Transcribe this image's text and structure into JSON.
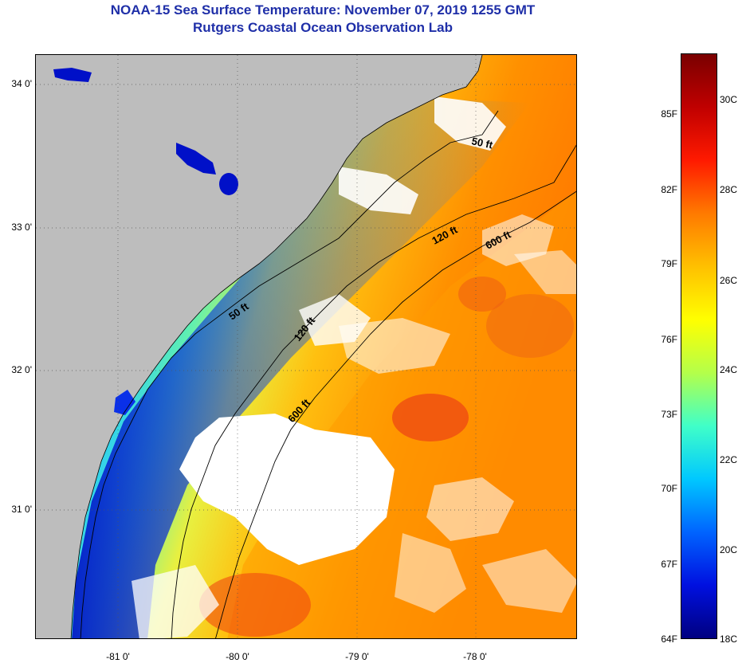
{
  "header": {
    "title": "NOAA-15 Sea Surface Temperature:  November 07, 2019 1255 GMT",
    "subtitle": "Rutgers Coastal Ocean Observation Lab"
  },
  "map": {
    "latitude_labels": [
      "34 0'",
      "33 0'",
      "32 0'",
      "31 0'"
    ],
    "longitude_labels": [
      "-81 0'",
      "-80 0'",
      "-79 0'",
      "-78 0'"
    ],
    "isobath_labels": {
      "north_50": "50 ft",
      "north_120": "120 ft",
      "north_600": "600 ft",
      "mid_50": "50 ft",
      "mid_120": "120 ft",
      "south_600": "600 ft"
    },
    "colors": {
      "land": "#bdbdbd",
      "cloud": "#ffffff",
      "contour": "#000000"
    }
  },
  "colorbar": {
    "fahrenheit": [
      "85F",
      "82F",
      "79F",
      "76F",
      "73F",
      "70F",
      "67F",
      "64F"
    ],
    "celsius": [
      "30C",
      "28C",
      "26C",
      "24C",
      "22C",
      "20C",
      "18C"
    ],
    "range_c": [
      18,
      31.5
    ],
    "gradient": [
      "#7a0000",
      "#c00000",
      "#ff1a00",
      "#ff7a00",
      "#ffc000",
      "#ffff00",
      "#b4ff4a",
      "#40ffc8",
      "#00c8ff",
      "#0064ff",
      "#0010e0",
      "#000080"
    ]
  }
}
